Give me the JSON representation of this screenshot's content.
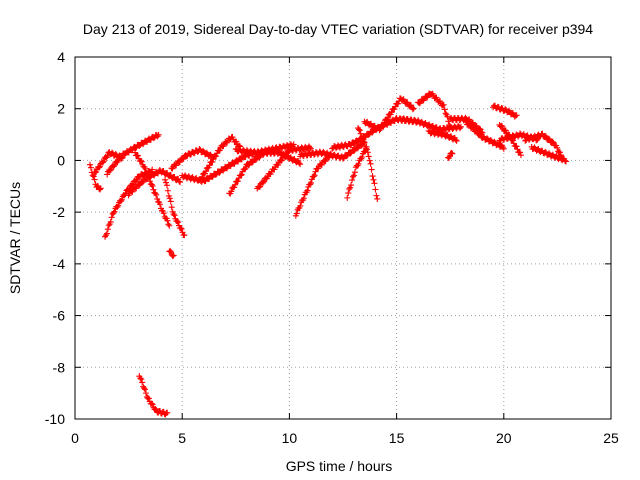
{
  "chart_data": {
    "type": "scatter",
    "title": "Day 213 of 2019, Sidereal Day-to-day VTEC variation (SDTVAR) for receiver p394",
    "xlabel": "GPS time / hours",
    "ylabel": "SDTVAR / TECUs",
    "xlim": [
      0,
      25
    ],
    "ylim": [
      -10,
      4
    ],
    "xticks": [
      "0",
      "5",
      "10",
      "15",
      "20",
      "25"
    ],
    "yticks": [
      "-10",
      "-8",
      "-6",
      "-4",
      "-2",
      "0",
      "2",
      "4"
    ],
    "xtick_values": [
      0,
      5,
      10,
      15,
      20,
      25
    ],
    "ytick_values": [
      -10,
      -8,
      -6,
      -4,
      -2,
      0,
      2,
      4
    ],
    "grid": true,
    "marker": "plus",
    "series": [
      {
        "name": "SDTVAR",
        "color": "#ff0000",
        "tracks": [
          [
            [
              0.7,
              -0.2
            ],
            [
              1.0,
              -1.0
            ],
            [
              1.2,
              -1.1
            ]
          ],
          [
            [
              0.9,
              -0.5
            ],
            [
              1.6,
              0.3
            ],
            [
              2.2,
              0.1
            ]
          ],
          [
            [
              1.4,
              -3.0
            ],
            [
              1.8,
              -2.0
            ],
            [
              2.4,
              -1.2
            ],
            [
              3.0,
              -0.6
            ],
            [
              3.6,
              -0.4
            ]
          ],
          [
            [
              1.5,
              -0.5
            ],
            [
              2.2,
              0.2
            ],
            [
              3.0,
              0.6
            ],
            [
              3.9,
              1.0
            ]
          ],
          [
            [
              2.8,
              0.3
            ],
            [
              3.2,
              -0.2
            ],
            [
              3.7,
              -1.2
            ],
            [
              4.1,
              -2.0
            ],
            [
              4.4,
              -2.5
            ]
          ],
          [
            [
              3.0,
              -8.3
            ],
            [
              3.4,
              -9.2
            ],
            [
              3.8,
              -9.7
            ],
            [
              4.3,
              -9.8
            ]
          ],
          [
            [
              2.5,
              -1.3
            ],
            [
              3.3,
              -0.7
            ],
            [
              4.0,
              -0.4
            ],
            [
              4.9,
              -0.8
            ]
          ],
          [
            [
              4.2,
              -0.7
            ],
            [
              4.6,
              -2.1
            ],
            [
              5.1,
              -2.9
            ]
          ],
          [
            [
              4.4,
              -3.5
            ],
            [
              4.6,
              -3.7
            ]
          ],
          [
            [
              4.5,
              -0.3
            ],
            [
              5.2,
              0.2
            ],
            [
              5.8,
              0.4
            ],
            [
              6.5,
              0.1
            ]
          ],
          [
            [
              5.0,
              -0.6
            ],
            [
              6.0,
              -0.8
            ],
            [
              7.0,
              -0.3
            ],
            [
              8.0,
              0.2
            ],
            [
              9.0,
              0.4
            ]
          ],
          [
            [
              5.8,
              -0.8
            ],
            [
              6.8,
              0.5
            ],
            [
              7.3,
              0.9
            ],
            [
              7.7,
              0.5
            ]
          ],
          [
            [
              7.2,
              -1.3
            ],
            [
              8.0,
              -0.2
            ],
            [
              9.0,
              0.4
            ],
            [
              10.2,
              0.6
            ]
          ],
          [
            [
              7.5,
              0.4
            ],
            [
              8.5,
              0.3
            ],
            [
              9.5,
              0.3
            ],
            [
              10.5,
              -0.1
            ]
          ],
          [
            [
              8.5,
              -1.1
            ],
            [
              9.3,
              -0.3
            ],
            [
              10.0,
              0.4
            ],
            [
              11.0,
              0.5
            ]
          ],
          [
            [
              10.3,
              -2.1
            ],
            [
              10.8,
              -1.2
            ],
            [
              11.3,
              -0.3
            ],
            [
              11.9,
              0.2
            ]
          ],
          [
            [
              10.5,
              0.2
            ],
            [
              11.5,
              0.3
            ],
            [
              12.5,
              0.1
            ],
            [
              13.5,
              0.7
            ]
          ],
          [
            [
              12.0,
              0.5
            ],
            [
              12.8,
              0.6
            ],
            [
              13.3,
              0.8
            ]
          ],
          [
            [
              12.7,
              -1.4
            ],
            [
              13.1,
              -0.3
            ],
            [
              13.6,
              0.5
            ]
          ],
          [
            [
              13.2,
              1.3
            ],
            [
              13.7,
              0.2
            ],
            [
              14.1,
              -1.5
            ]
          ],
          [
            [
              13.3,
              0.8
            ],
            [
              14.0,
              1.2
            ],
            [
              15.0,
              1.6
            ],
            [
              16.0,
              1.5
            ]
          ],
          [
            [
              13.5,
              1.5
            ],
            [
              14.2,
              1.2
            ],
            [
              15.2,
              2.4
            ],
            [
              15.8,
              2.0
            ]
          ],
          [
            [
              15.2,
              1.6
            ],
            [
              16.0,
              1.5
            ],
            [
              17.0,
              1.2
            ],
            [
              18.0,
              1.3
            ]
          ],
          [
            [
              16.0,
              2.2
            ],
            [
              16.6,
              2.6
            ],
            [
              17.2,
              2.1
            ],
            [
              17.5,
              1.3
            ]
          ],
          [
            [
              16.5,
              1.1
            ],
            [
              17.2,
              1.0
            ],
            [
              17.8,
              0.8
            ]
          ],
          [
            [
              17.4,
              0.1
            ],
            [
              17.6,
              0.3
            ]
          ],
          [
            [
              17.5,
              1.6
            ],
            [
              18.3,
              1.6
            ],
            [
              19.0,
              1.1
            ]
          ],
          [
            [
              18.2,
              1.5
            ],
            [
              19.0,
              0.9
            ],
            [
              20.0,
              0.5
            ]
          ],
          [
            [
              19.5,
              2.1
            ],
            [
              20.2,
              1.9
            ],
            [
              20.6,
              1.7
            ]
          ],
          [
            [
              19.8,
              1.4
            ],
            [
              20.3,
              0.9
            ],
            [
              20.8,
              0.2
            ]
          ],
          [
            [
              19.8,
              0.8
            ],
            [
              20.8,
              1.0
            ],
            [
              21.6,
              0.8
            ]
          ],
          [
            [
              21.0,
              0.8
            ],
            [
              21.8,
              1.0
            ],
            [
              22.4,
              0.6
            ],
            [
              22.8,
              0.0
            ]
          ],
          [
            [
              21.3,
              0.5
            ],
            [
              22.2,
              0.2
            ],
            [
              22.9,
              0.0
            ]
          ]
        ]
      }
    ]
  }
}
